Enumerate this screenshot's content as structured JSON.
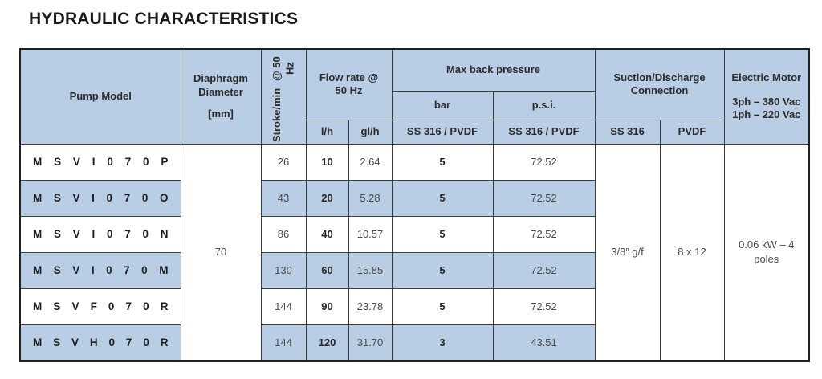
{
  "title": "HYDRAULIC CHARACTERISTICS",
  "table": {
    "headers": {
      "pump_model": "Pump Model",
      "diaphragm_line1": "Diaphragm Diameter",
      "diaphragm_line2": "[mm]",
      "stroke_line1": "Stroke/min",
      "stroke_line2": "@ 50 Hz",
      "flow_rate": "Flow rate @ 50 Hz",
      "flow_unit_l": "l/h",
      "flow_unit_gl": "gl/h",
      "max_back_pressure": "Max back pressure",
      "bar": "bar",
      "psi": "p.s.i.",
      "bar_material": "SS 316 / PVDF",
      "psi_material": "SS 316 / PVDF",
      "suction_discharge": "Suction/Discharge Connection",
      "ss316": "SS 316",
      "pvdf": "PVDF",
      "electric_motor": "Electric Motor",
      "motor_line1": "3ph – 380 Vac",
      "motor_line2": "1ph – 220 Vac"
    },
    "shared": {
      "diaphragm_diameter_mm": "70",
      "connection_ss316": "3/8” g/f",
      "connection_pvdf": "8 x 12",
      "motor_power": "0.06 kW – 4 poles"
    },
    "rows": [
      {
        "model": "MSVI070P",
        "stroke": "26",
        "lh": "10",
        "glh": "2.64",
        "bar": "5",
        "psi": "72.52"
      },
      {
        "model": "MSVI070O",
        "stroke": "43",
        "lh": "20",
        "glh": "5.28",
        "bar": "5",
        "psi": "72.52"
      },
      {
        "model": "MSVI070N",
        "stroke": "86",
        "lh": "40",
        "glh": "10.57",
        "bar": "5",
        "psi": "72.52"
      },
      {
        "model": "MSVI070M",
        "stroke": "130",
        "lh": "60",
        "glh": "15.85",
        "bar": "5",
        "psi": "72.52"
      },
      {
        "model": "MSVF070R",
        "stroke": "144",
        "lh": "90",
        "glh": "23.78",
        "bar": "5",
        "psi": "72.52"
      },
      {
        "model": "MSVH070R",
        "stroke": "144",
        "lh": "120",
        "glh": "31.70",
        "bar": "3",
        "psi": "43.51"
      }
    ],
    "colors": {
      "header_bg": "#b9cde5",
      "row_alt_bg": "#b9cde5",
      "border": "#3d3d3d",
      "text": "#4a4a4a"
    }
  }
}
